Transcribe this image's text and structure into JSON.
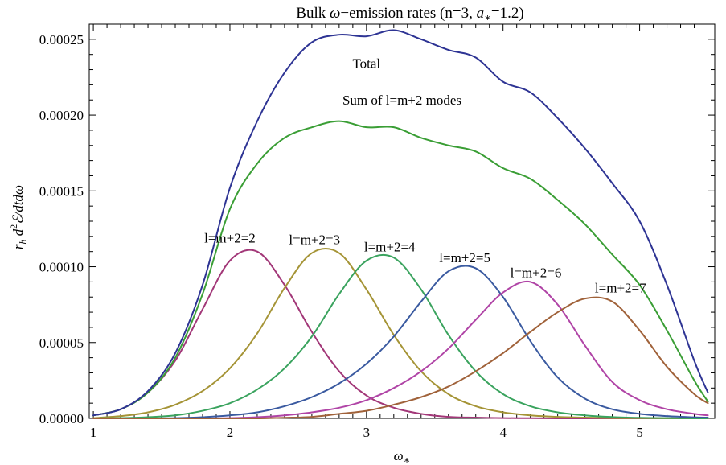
{
  "chart_data": {
    "type": "line",
    "title_parts": {
      "pre": "Bulk ",
      "omega": "ω",
      "mid": "−emission rates (n=3, ",
      "a": "a",
      "star": "∗",
      "post": "=1.2)"
    },
    "xlabel": {
      "base": "ω",
      "sub": "∗"
    },
    "ylabel": {
      "r": "r",
      "h": "h",
      "d": " d",
      "two": "2",
      "rest": "ℰ/dtdω"
    },
    "xlim": [
      0.97,
      5.55
    ],
    "ylim": [
      0,
      0.00026
    ],
    "grid": false,
    "x_ticks": [
      "1",
      "2",
      "3",
      "4",
      "5"
    ],
    "y_ticks": [
      "0.00000",
      "0.00005",
      "0.00010",
      "0.00015",
      "0.00020",
      "0.00025"
    ],
    "x": [
      1.0,
      1.2,
      1.4,
      1.6,
      1.8,
      2.0,
      2.2,
      2.4,
      2.6,
      2.8,
      3.0,
      3.2,
      3.4,
      3.6,
      3.8,
      4.0,
      4.2,
      4.4,
      4.6,
      4.8,
      5.0,
      5.2,
      5.4,
      5.5
    ],
    "series": [
      {
        "name": "Total",
        "color": "#2e3494",
        "values": [
          2e-06,
          6e-06,
          1.8e-05,
          4.3e-05,
          8.8e-05,
          0.000152,
          0.000196,
          0.000228,
          0.000248,
          0.000253,
          0.000252,
          0.000256,
          0.00025,
          0.000243,
          0.000238,
          0.000222,
          0.000215,
          0.000198,
          0.000178,
          0.000155,
          0.00013,
          8.8e-05,
          3.8e-05,
          1.7e-05
        ]
      },
      {
        "name": "Sum of l=m+2 modes",
        "color": "#3a9e35",
        "values": [
          2e-06,
          6e-06,
          1.7e-05,
          4e-05,
          8.2e-05,
          0.000138,
          0.000168,
          0.000185,
          0.000192,
          0.000196,
          0.000192,
          0.000192,
          0.000185,
          0.00018,
          0.000176,
          0.000165,
          0.000158,
          0.000144,
          0.000128,
          0.000108,
          8.8e-05,
          5.8e-05,
          2.5e-05,
          1.1e-05
        ]
      },
      {
        "name": "l=m+2=2",
        "color": "#a23778",
        "values": [
          2e-06,
          6e-06,
          1.7e-05,
          3.8e-05,
          7.2e-05,
          0.000104,
          0.00011,
          8.8e-05,
          5.7e-05,
          3.1e-05,
          1.5e-05,
          7e-06,
          3e-06,
          1e-06,
          5e-07,
          2e-07,
          1e-07,
          0.0,
          0.0,
          0.0,
          0.0,
          0.0,
          0.0,
          0.0
        ]
      },
      {
        "name": "l=m+2=3",
        "color": "#a59436",
        "values": [
          2e-07,
          1.5e-06,
          4e-06,
          9e-06,
          1.8e-05,
          3.3e-05,
          5.6e-05,
          8.6e-05,
          0.000109,
          0.000109,
          8.5e-05,
          5.5e-05,
          3.1e-05,
          1.6e-05,
          8e-06,
          4e-06,
          2e-06,
          1e-06,
          5e-07,
          2e-07,
          1e-07,
          0.0,
          0.0,
          0.0
        ]
      },
      {
        "name": "l=m+2=4",
        "color": "#3aa35e",
        "values": [
          0.0,
          2e-07,
          8e-07,
          2e-06,
          5e-06,
          1e-05,
          1.9e-05,
          3.3e-05,
          5.4e-05,
          8.2e-05,
          0.000104,
          0.000106,
          8.5e-05,
          5.5e-05,
          3.1e-05,
          1.6e-05,
          8e-06,
          4e-06,
          2e-06,
          9e-07,
          4e-07,
          2e-07,
          0.0,
          0.0
        ]
      },
      {
        "name": "l=m+2=5",
        "color": "#3a5aa0",
        "values": [
          0.0,
          0.0,
          0.0,
          2e-07,
          8e-07,
          2e-06,
          4e-06,
          8e-06,
          1.4e-05,
          2.3e-05,
          3.6e-05,
          5.4e-05,
          7.7e-05,
          9.7e-05,
          9.9e-05,
          8e-05,
          5.1e-05,
          2.7e-05,
          1.3e-05,
          6e-06,
          3e-06,
          1.5e-06,
          7e-07,
          5e-07
        ]
      },
      {
        "name": "l=m+2=6",
        "color": "#b044a6",
        "values": [
          0.0,
          0.0,
          0.0,
          0.0,
          0.0,
          2e-07,
          8e-07,
          2e-06,
          4e-06,
          7e-06,
          1.2e-05,
          2e-05,
          3.1e-05,
          4.6e-05,
          6.5e-05,
          8.3e-05,
          9e-05,
          7.5e-05,
          4.8e-05,
          2.4e-05,
          1.2e-05,
          6e-06,
          3e-06,
          2e-06
        ]
      },
      {
        "name": "l=m+2=7",
        "color": "#a0623a",
        "values": [
          0.0,
          0.0,
          0.0,
          0.0,
          0.0,
          0.0,
          0.0,
          4e-07,
          1e-06,
          3e-06,
          5e-06,
          9e-06,
          1.4e-05,
          2.1e-05,
          3.1e-05,
          4.3e-05,
          5.7e-05,
          7e-05,
          7.9e-05,
          7.7e-05,
          5.8e-05,
          3.4e-05,
          1.6e-05,
          1e-05
        ]
      }
    ],
    "annotations": [
      {
        "text": "Total",
        "x": 3.0,
        "y": 0.000231
      },
      {
        "text": "Sum of l=m+2 modes",
        "x": 3.26,
        "y": 0.000207
      },
      {
        "text": "l=m+2=2",
        "x": 2.0,
        "y": 0.000116
      },
      {
        "text": "l=m+2=3",
        "x": 2.62,
        "y": 0.000115
      },
      {
        "text": "l=m+2=4",
        "x": 3.17,
        "y": 0.00011
      },
      {
        "text": "l=m+2=5",
        "x": 3.72,
        "y": 0.000103
      },
      {
        "text": "l=m+2=6",
        "x": 4.24,
        "y": 9.3e-05
      },
      {
        "text": "l=m+2=7",
        "x": 4.86,
        "y": 8.3e-05
      }
    ]
  }
}
